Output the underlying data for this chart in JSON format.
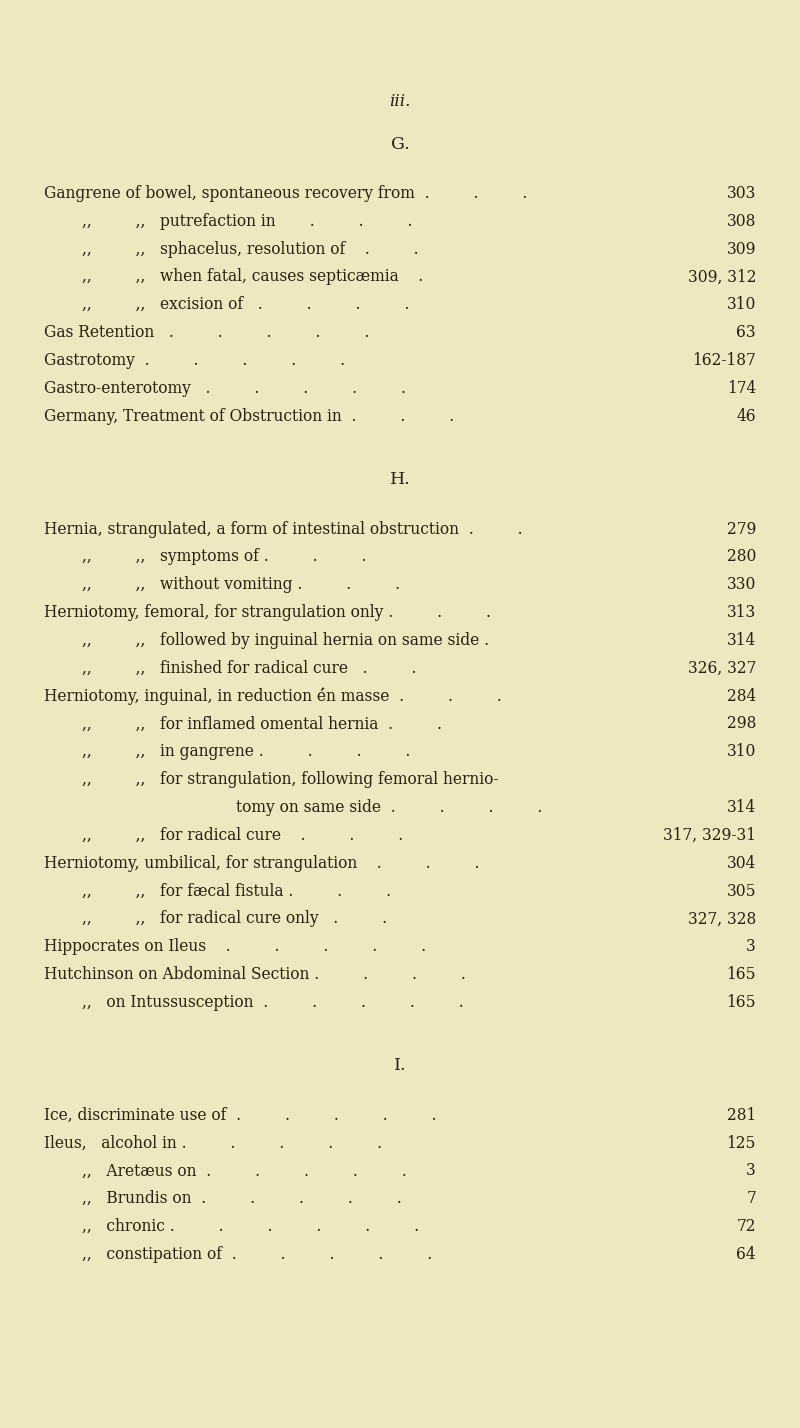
{
  "background_color": "#ede8c0",
  "text_color": "#2a2010",
  "page_number": "iii.",
  "sections": [
    {
      "header": "G.",
      "entries": [
        {
          "indent": 0,
          "left": "Gangrene of bowel, spontaneous recovery from  .         .         .",
          "page": "303"
        },
        {
          "indent": 1,
          "left": ",,         ,,   putrefaction in       .         .         .",
          "page": "308"
        },
        {
          "indent": 1,
          "left": ",,         ,,   sphacelus, resolution of    .         .",
          "page": "309"
        },
        {
          "indent": 1,
          "left": ",,         ,,   when fatal, causes septicæmia    .",
          "page": "309, 312"
        },
        {
          "indent": 1,
          "left": ",,         ,,   excision of   .         .         .         .",
          "page": "310"
        },
        {
          "indent": 0,
          "left": "Gas Retention   .         .         .         .         .",
          "page": "63"
        },
        {
          "indent": 0,
          "left": "Gastrotomy  .         .         .         .         .",
          "page": "162-187"
        },
        {
          "indent": 0,
          "left": "Gastro-enterotomy   .         .         .         .         .",
          "page": "174"
        },
        {
          "indent": 0,
          "left": "Germany, Treatment of Obstruction in  .         .         .",
          "page": "46"
        }
      ]
    },
    {
      "header": "H.",
      "entries": [
        {
          "indent": 0,
          "left": "Hernia, strangulated, a form of intestinal obstruction  .         .",
          "page": "279"
        },
        {
          "indent": 1,
          "left": ",,         ,,   symptoms of .         .         .",
          "page": "280"
        },
        {
          "indent": 1,
          "left": ",,         ,,   without vomiting .         .         .",
          "page": "330"
        },
        {
          "indent": 0,
          "left": "Herniotomy, femoral, for strangulation only .         .         .",
          "page": "313"
        },
        {
          "indent": 1,
          "left": ",,         ,,   followed by inguinal hernia on same side .",
          "page": "314"
        },
        {
          "indent": 1,
          "left": ",,         ,,   finished for radical cure   .         .",
          "page": "326, 327"
        },
        {
          "indent": 0,
          "left": "Herniotomy, inguinal, in reduction é́n masse  .         .         .",
          "page": "284"
        },
        {
          "indent": 1,
          "left": ",,         ,,   for inflamed omental hernia  .         .",
          "page": "298"
        },
        {
          "indent": 1,
          "left": ",,         ,,   in gangrene .         .         .         .",
          "page": "310"
        },
        {
          "indent": 1,
          "left": ",,         ,,   for strangulation, following femoral hernio-",
          "page": ""
        },
        {
          "indent": 5,
          "left": "tomy on same side  .         .         .         .",
          "page": "314"
        },
        {
          "indent": 1,
          "left": ",,         ,,   for radical cure    .         .         .",
          "page": "317, 329-31"
        },
        {
          "indent": 0,
          "left": "Herniotomy, umbilical, for strangulation    .         .         .",
          "page": "304"
        },
        {
          "indent": 1,
          "left": ",,         ,,   for fæcal fistula .         .         .",
          "page": "305"
        },
        {
          "indent": 1,
          "left": ",,         ,,   for radical cure only   .         .",
          "page": "327, 328"
        },
        {
          "indent": 0,
          "left": "Hippocrates on Ileus    .         .         .         .         .",
          "page": "3"
        },
        {
          "indent": 0,
          "left": "Hutchinson on Abdominal Section .         .         .         .",
          "page": "165"
        },
        {
          "indent": 1,
          "left": ",,   on Intussusception  .         .         .         .         .",
          "page": "165"
        }
      ]
    },
    {
      "header": "I.",
      "entries": [
        {
          "indent": 0,
          "left": "Ice, discriminate use of  .         .         .         .         .",
          "page": "281"
        },
        {
          "indent": 0,
          "left": "Ileus,   alcohol in .         .         .         .         .",
          "page": "125"
        },
        {
          "indent": 1,
          "left": ",,   Aretæus on  .         .         .         .         .",
          "page": "3"
        },
        {
          "indent": 1,
          "left": ",,   Brundis on  .         .         .         .         .",
          "page": "7"
        },
        {
          "indent": 1,
          "left": ",,   chronic .         .         .         .         .         .",
          "page": "72"
        },
        {
          "indent": 1,
          "left": ",,   constipation of  .         .         .         .         .",
          "page": "64"
        }
      ]
    }
  ]
}
